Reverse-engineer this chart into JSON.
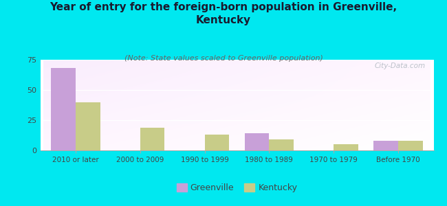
{
  "title": "Year of entry for the foreign-born population in Greenville,\nKentucky",
  "subtitle": "(Note: State values scaled to Greenville population)",
  "categories": [
    "2010 or later",
    "2000 to 2009",
    "1990 to 1999",
    "1980 to 1989",
    "1970 to 1979",
    "Before 1970"
  ],
  "greenville": [
    68,
    0,
    0,
    14,
    0,
    8
  ],
  "kentucky": [
    40,
    19,
    13,
    9,
    5,
    8
  ],
  "greenville_color": "#c8a0d8",
  "kentucky_color": "#c8cc88",
  "background_color": "#00e8f0",
  "plot_bg_topleft": "#d8edd8",
  "plot_bg_right": "#f0f8f0",
  "plot_bg_bottom": "#f8fff8",
  "ylim": [
    0,
    75
  ],
  "yticks": [
    0,
    25,
    50,
    75
  ],
  "bar_width": 0.38,
  "title_fontsize": 11,
  "subtitle_fontsize": 8,
  "legend_greenville": "Greenville",
  "legend_kentucky": "Kentucky",
  "watermark": "City-Data.com"
}
